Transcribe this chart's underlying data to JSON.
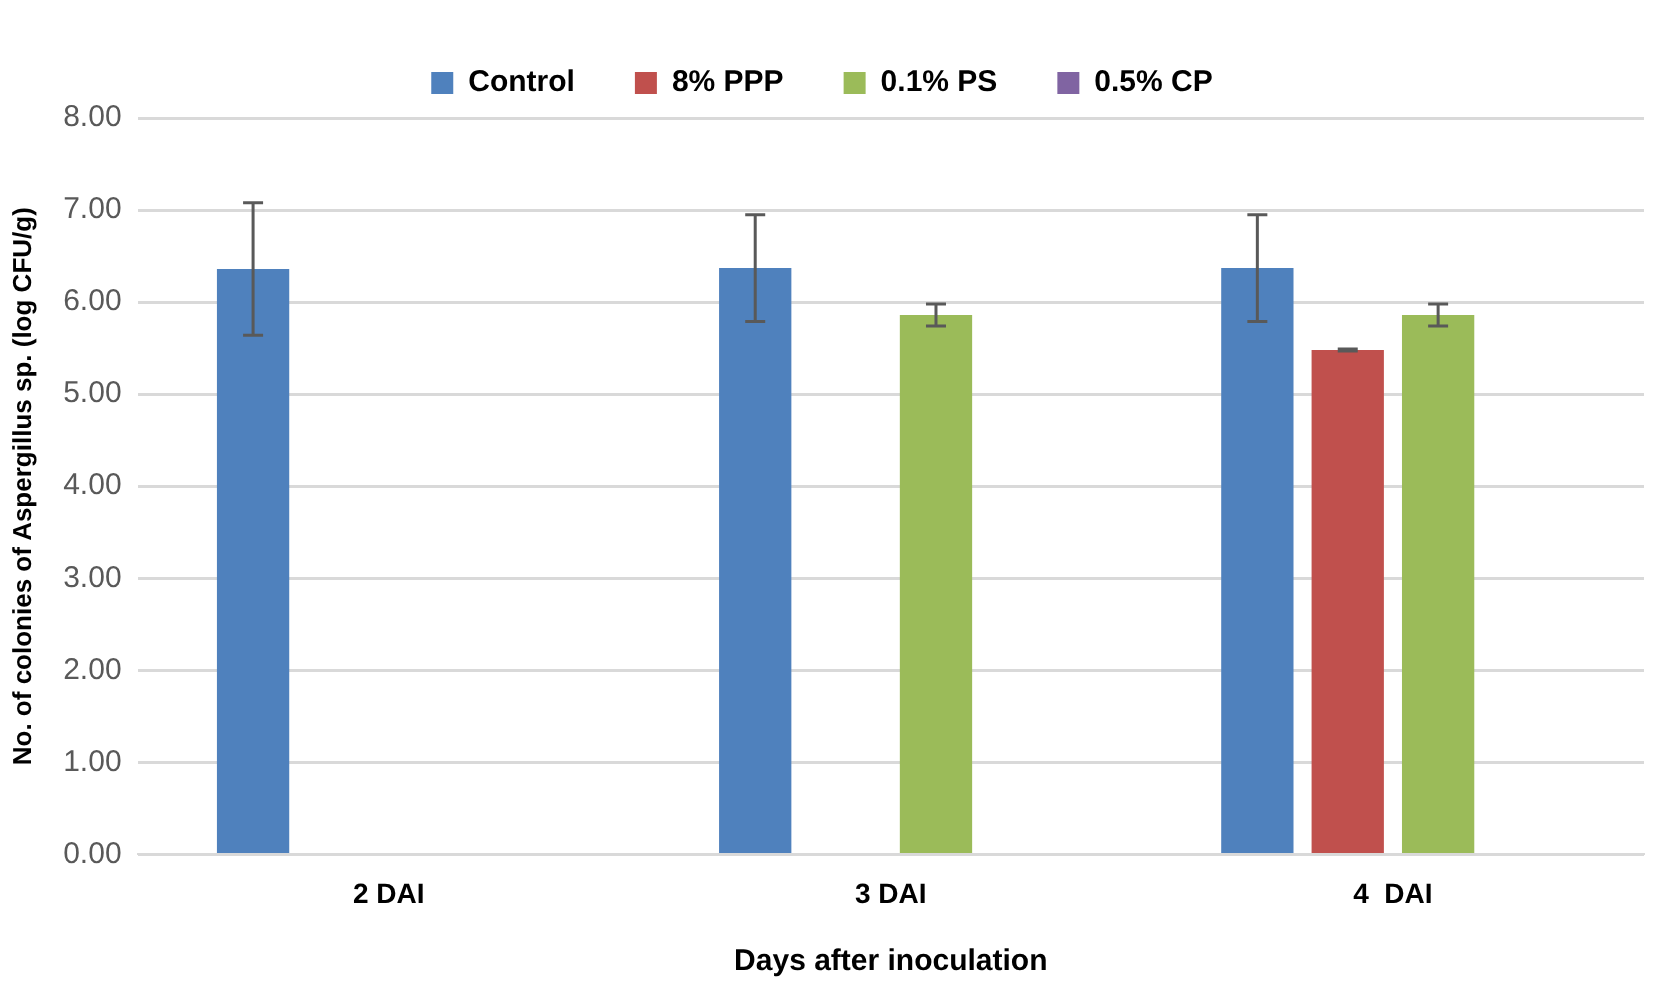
{
  "chart_data": {
    "type": "bar",
    "xlabel": "Days after inoculation",
    "ylabel": "No. of colonies of Aspergillus sp. (log CFU/g)",
    "categories": [
      "2 DAI",
      "3 DAI",
      "4  DAI"
    ],
    "series": [
      {
        "name": "Control",
        "color": "#4f81bd",
        "values": [
          6.36,
          6.37,
          6.37
        ],
        "errors": [
          0.72,
          0.58,
          0.58
        ]
      },
      {
        "name": "8% PPP",
        "color": "#c0504d",
        "values": [
          0,
          0,
          5.48
        ],
        "errors": [
          null,
          null,
          0.01
        ]
      },
      {
        "name": "0.1% PS",
        "color": "#9bbb59",
        "values": [
          0,
          5.86,
          5.86
        ],
        "errors": [
          null,
          0.12,
          0.12
        ]
      },
      {
        "name": "0.5% CP",
        "color": "#8064a2",
        "values": [
          0,
          0,
          0
        ]
      }
    ],
    "ylim": [
      0,
      8
    ],
    "yticks": [
      {
        "value": 0,
        "label": "0.00"
      },
      {
        "value": 1,
        "label": "1.00"
      },
      {
        "value": 2,
        "label": "2.00"
      },
      {
        "value": 3,
        "label": "3.00"
      },
      {
        "value": 4,
        "label": "4.00"
      },
      {
        "value": 5,
        "label": "5.00"
      },
      {
        "value": 6,
        "label": "6.00"
      },
      {
        "value": 7,
        "label": "7.00"
      },
      {
        "value": 8,
        "label": "8.00"
      }
    ],
    "grid": "y",
    "legend": "top"
  }
}
